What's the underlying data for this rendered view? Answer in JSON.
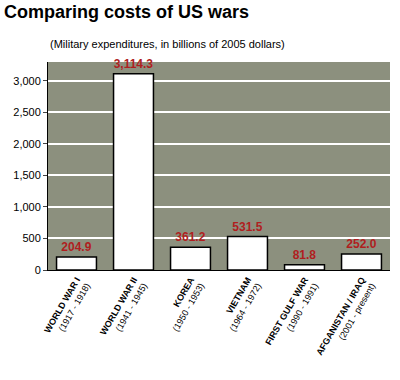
{
  "chart_data": {
    "type": "bar",
    "title": "Comparing costs of US wars",
    "subtitle": "(Military expenditures, in billions of 2005 dollars)",
    "categories": [
      "WORLD WAR I\n(1917 - 1918)",
      "WORLD WAR II\n(1941 - 1945)",
      "KOREA\n(1950 - 1953)",
      "VIETNAM\n(1964 - 1972)",
      "FIRST GULF WAR\n(1990 - 1991)",
      "AFGANISTAN / IRAQ\n(2001 - present)"
    ],
    "values": [
      204.9,
      3114.3,
      361.2,
      531.5,
      81.8,
      252.0
    ],
    "value_labels": [
      "204.9",
      "3,114.3",
      "361.2",
      "531.5",
      "81.8",
      "252.0"
    ],
    "color": "#ffffff",
    "ylim": [
      0,
      3300
    ],
    "yticks": [
      0,
      500,
      {
        "value": 1000,
        "label": "1,000"
      },
      {
        "value": 1500,
        "label": "1,500"
      },
      {
        "value": 2000,
        "label": "2,000"
      },
      {
        "value": 2500,
        "label": "2,500"
      },
      {
        "value": 3000,
        "label": "3,000"
      }
    ],
    "grid": true,
    "data_labels": true
  }
}
